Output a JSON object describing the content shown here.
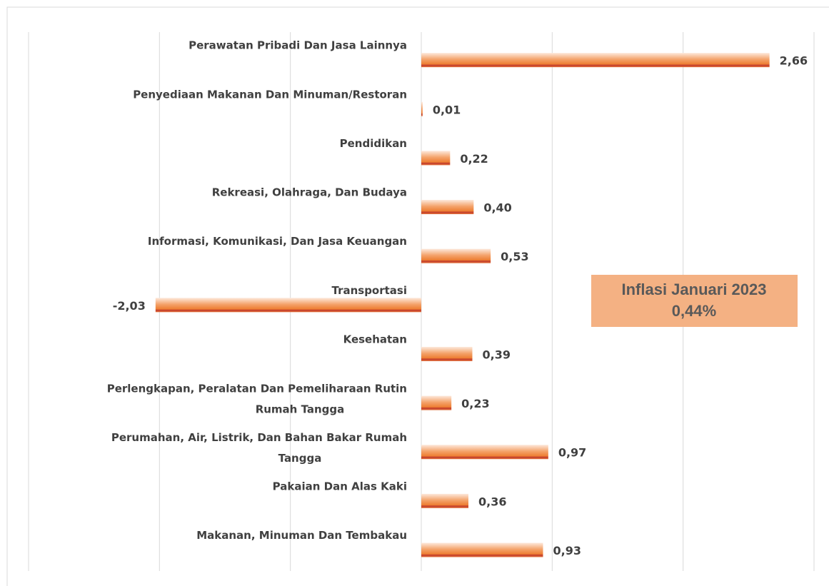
{
  "chart_data": {
    "type": "hbar",
    "categories": [
      "Perawatan Pribadi Dan Jasa Lainnya",
      "Penyediaan Makanan Dan Minuman/Restoran",
      "Pendidikan",
      "Rekreasi, Olahraga, Dan Budaya",
      "Informasi, Komunikasi, Dan Jasa Keuangan",
      "Transportasi",
      "Kesehatan",
      "Perlengkapan, Peralatan Dan Pemeliharaan Rutin Rumah Tangga",
      "Perumahan, Air, Listrik, Dan Bahan Bakar Rumah Tangga",
      "Pakaian Dan Alas Kaki",
      "Makanan, Minuman Dan Tembakau"
    ],
    "values": [
      2.66,
      0.01,
      0.22,
      0.4,
      0.53,
      -2.03,
      0.39,
      0.23,
      0.97,
      0.36,
      0.93
    ],
    "value_labels": [
      "2,66",
      "0,01",
      "0,22",
      "0,40",
      "0,53",
      "-2,03",
      "0,39",
      "0,23",
      "0,97",
      "0,36",
      "0,93"
    ],
    "color": "#ed7d31",
    "xlim": [
      -3,
      3
    ],
    "xticks": [
      -3,
      -2,
      -1,
      0,
      1,
      2,
      3
    ],
    "grid": true,
    "annotation": [
      "Inflasi Januari 2023",
      "0,44%"
    ]
  }
}
